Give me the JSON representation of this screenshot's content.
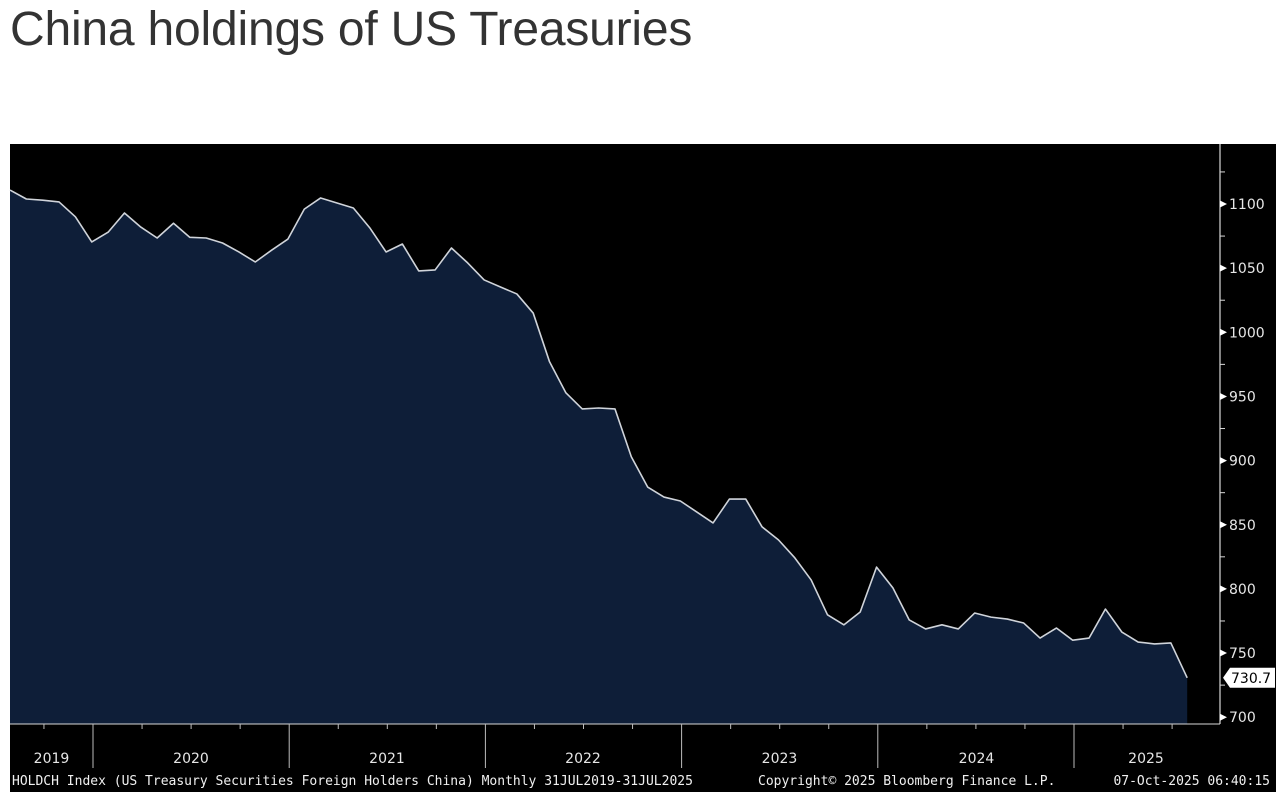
{
  "title": "China holdings of US Treasuries",
  "colors": {
    "background": "#000000",
    "area_fill": "#0e1e38",
    "line": "#d0d4da",
    "axis": "#d8d8d8",
    "text": "#e6e6e6",
    "last_label_bg": "#ffffff"
  },
  "chart_data": {
    "type": "area",
    "title": "China holdings of US Treasuries",
    "series_name": "HOLDCH Index (US Treasury Securities Foreign Holders China)",
    "frequency": "Monthly",
    "x_start": "Jul 2019",
    "x_end": "Jul 2025",
    "x": [
      "2019-07",
      "2019-08",
      "2019-09",
      "2019-10",
      "2019-11",
      "2019-12",
      "2020-01",
      "2020-02",
      "2020-03",
      "2020-04",
      "2020-05",
      "2020-06",
      "2020-07",
      "2020-08",
      "2020-09",
      "2020-10",
      "2020-11",
      "2020-12",
      "2021-01",
      "2021-02",
      "2021-03",
      "2021-04",
      "2021-05",
      "2021-06",
      "2021-07",
      "2021-08",
      "2021-09",
      "2021-10",
      "2021-11",
      "2021-12",
      "2022-01",
      "2022-02",
      "2022-03",
      "2022-04",
      "2022-05",
      "2022-06",
      "2022-07",
      "2022-08",
      "2022-09",
      "2022-10",
      "2022-11",
      "2022-12",
      "2023-01",
      "2023-02",
      "2023-03",
      "2023-04",
      "2023-05",
      "2023-06",
      "2023-07",
      "2023-08",
      "2023-09",
      "2023-10",
      "2023-11",
      "2023-12",
      "2024-01",
      "2024-02",
      "2024-03",
      "2024-04",
      "2024-05",
      "2024-06",
      "2024-07",
      "2024-08",
      "2024-09",
      "2024-10",
      "2024-11",
      "2024-12",
      "2025-01",
      "2025-02",
      "2025-03",
      "2025-04",
      "2025-05",
      "2025-06",
      "2025-07"
    ],
    "values": [
      1110.9,
      1103.9,
      1103.0,
      1101.6,
      1090.0,
      1070.4,
      1078.0,
      1093.0,
      1082.0,
      1073.5,
      1085.0,
      1074.0,
      1073.5,
      1069.6,
      1062.6,
      1054.8,
      1064.0,
      1072.7,
      1096.0,
      1104.7,
      1100.8,
      1096.9,
      1081.5,
      1062.6,
      1068.8,
      1047.8,
      1048.6,
      1065.7,
      1054.0,
      1040.8,
      1035.3,
      1029.9,
      1015.0,
      977.0,
      952.8,
      940.3,
      941.0,
      940.3,
      903.0,
      879.4,
      871.6,
      868.5,
      860.0,
      851.4,
      870.0,
      870.0,
      848.3,
      838.2,
      824.2,
      807.0,
      779.8,
      772.0,
      782.0,
      817.0,
      800.8,
      775.8,
      768.8,
      772.0,
      768.8,
      781.2,
      778.0,
      776.5,
      773.4,
      761.7,
      769.5,
      760.0,
      761.7,
      784.3,
      766.4,
      758.6,
      757.1,
      757.9,
      730.7
    ],
    "last_value_label": "730.7",
    "ylim": [
      700,
      1145
    ],
    "y_ticks": [
      700,
      750,
      800,
      850,
      900,
      950,
      1000,
      1050,
      1100
    ],
    "y_tick_labels": [
      "700",
      "750",
      "800",
      "850",
      "900",
      "950",
      "1000",
      "1050",
      "1100"
    ],
    "y_axis_position": "right",
    "year_labels": [
      "2019",
      "2020",
      "2021",
      "2022",
      "2023",
      "2024",
      "2025"
    ],
    "xlabel": "",
    "ylabel": "",
    "grid": false,
    "legend": "none"
  },
  "footer": {
    "description": "HOLDCH Index (US Treasury Securities Foreign Holders China) Monthly 31JUL2019-31JUL2025",
    "copyright": "Copyright© 2025 Bloomberg Finance L.P.",
    "timestamp": "07-Oct-2025 06:40:15"
  }
}
